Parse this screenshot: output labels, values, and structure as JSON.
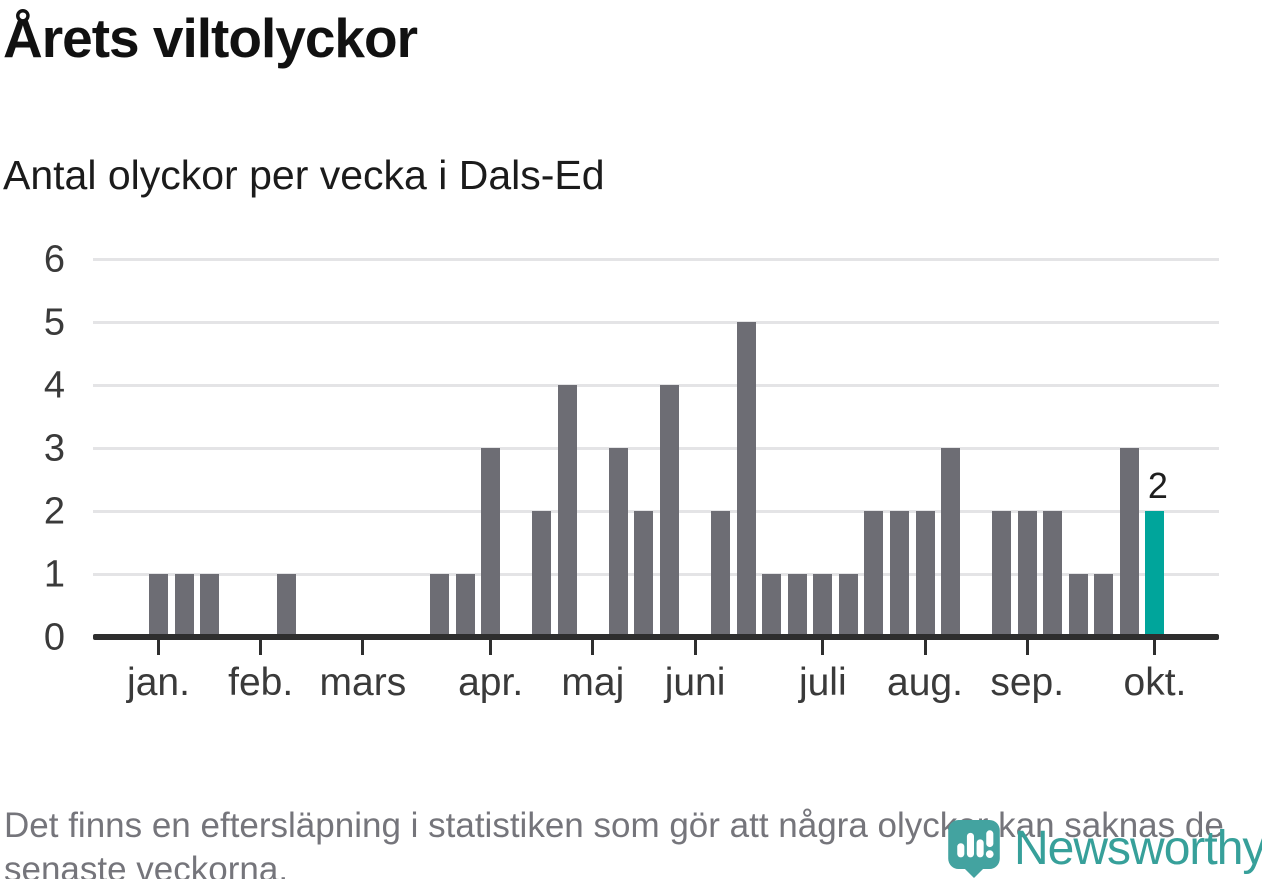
{
  "title": "Årets viltolyckor",
  "subtitle": "Antal olyckor per vecka i Dals-Ed",
  "footnote": "Det finns en eftersläpning i statistiken som gör att några olyckor kan saknas de senaste veckorna.",
  "logo": {
    "text": "Newsworthy"
  },
  "colors": {
    "bar": "#6d6d74",
    "highlight": "#00a59b",
    "axis": "#2e2e2e",
    "grid": "#e4e4e6",
    "tick_label": "#3a3a3a",
    "logo_teal": "#43a3a0",
    "logo_text": "#37a09a"
  },
  "chart_data": {
    "type": "bar",
    "title": "Årets viltolyckor",
    "subtitle": "Antal olyckor per vecka i Dals-Ed",
    "x_unit": "week",
    "values": [
      1,
      1,
      1,
      0,
      0,
      1,
      0,
      0,
      0,
      0,
      0,
      1,
      1,
      3,
      0,
      2,
      4,
      0,
      3,
      2,
      4,
      0,
      2,
      5,
      1,
      1,
      1,
      1,
      2,
      2,
      2,
      3,
      0,
      2,
      2,
      2,
      1,
      1,
      3,
      2
    ],
    "highlight_index": 39,
    "highlight_label": "2",
    "y_ticks": [
      0,
      1,
      2,
      3,
      4,
      5,
      6
    ],
    "ylim": [
      0,
      6
    ],
    "grid": true,
    "legend": "none",
    "month_ticks": [
      {
        "label": "jan.",
        "week": 0
      },
      {
        "label": "feb.",
        "week": 4
      },
      {
        "label": "mars",
        "week": 8
      },
      {
        "label": "apr.",
        "week": 13
      },
      {
        "label": "maj",
        "week": 17
      },
      {
        "label": "juni",
        "week": 21
      },
      {
        "label": "juli",
        "week": 26
      },
      {
        "label": "aug.",
        "week": 30
      },
      {
        "label": "sep.",
        "week": 34
      },
      {
        "label": "okt.",
        "week": 39
      }
    ]
  }
}
